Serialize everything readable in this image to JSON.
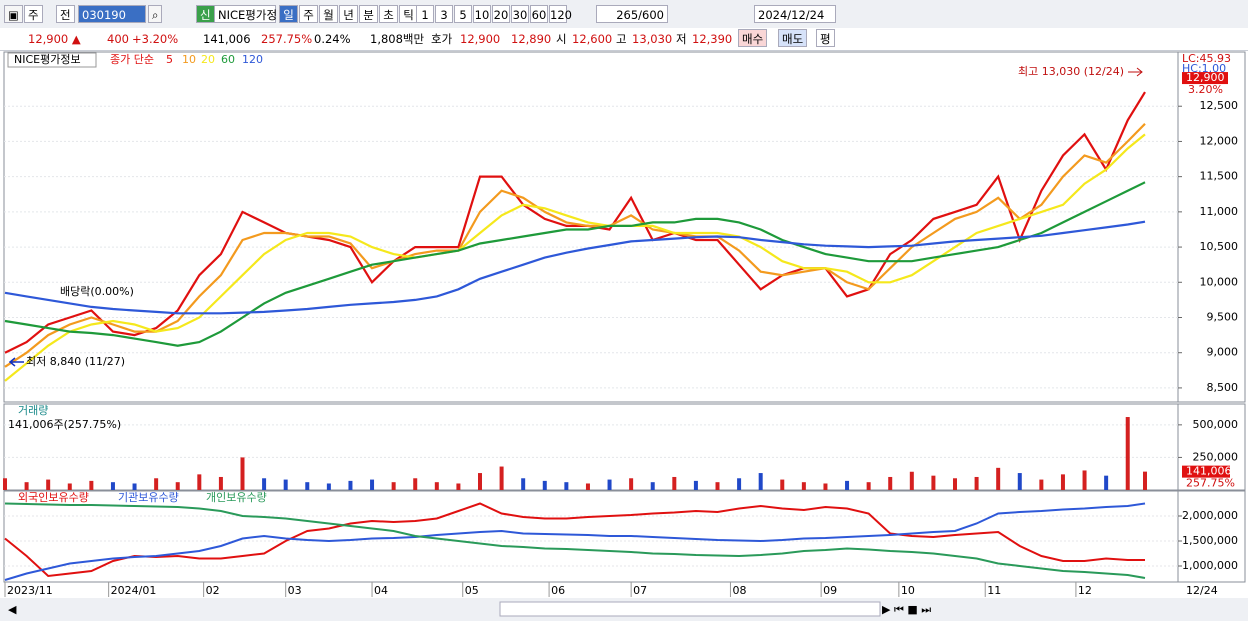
{
  "toolbar": {
    "period": "주",
    "prev": "전",
    "code": "030190",
    "name": "NICE평가정",
    "tabs": [
      "일",
      "주",
      "월",
      "년",
      "분",
      "초",
      "틱"
    ],
    "intervals": [
      "1",
      "3",
      "5",
      "10",
      "20",
      "30",
      "60",
      "120"
    ],
    "count": "265/600",
    "date": "2024/12/24"
  },
  "quote": {
    "price": "12,900 ▲",
    "change": "400",
    "change_pct": "+3.20%",
    "volume": "141,006",
    "volume_ratio": "257.75%",
    "turnover": "0.24%",
    "amount": "1,808백만",
    "bid_label": "호가",
    "ask": "12,900",
    "bid": "12,890",
    "open_label": "시",
    "open": "12,600",
    "high_label": "고",
    "high": "13,030",
    "low_label": "저",
    "low": "12,390",
    "buy": "매수",
    "sell": "매도",
    "avg": "평"
  },
  "chart_data": [
    {
      "type": "line",
      "title": "NICE평가정보",
      "legend_prefix": "종가 단순",
      "grid": true,
      "x": [
        0,
        5,
        10,
        15,
        20,
        25,
        30,
        35,
        40,
        45,
        50,
        55,
        60,
        65,
        70,
        75,
        80,
        85,
        90,
        95,
        100,
        105,
        110,
        115,
        120,
        125,
        130,
        135,
        140,
        145,
        150,
        155,
        160,
        165,
        170,
        175,
        180,
        185,
        190,
        195,
        200,
        205,
        210,
        215,
        220,
        225,
        230,
        235,
        240,
        245,
        250,
        255,
        260,
        264
      ],
      "xlim": [
        0,
        264
      ],
      "ylim": [
        8300,
        13270
      ],
      "yticks": [
        {
          "value": 8500,
          "label": "8,500"
        },
        {
          "value": 9000,
          "label": "9,000"
        },
        {
          "value": 9500,
          "label": "9,500"
        },
        {
          "value": 10000,
          "label": "10,000"
        },
        {
          "value": 10500,
          "label": "10,500"
        },
        {
          "value": 11000,
          "label": "11,000"
        },
        {
          "value": 11500,
          "label": "11,500"
        },
        {
          "value": 12000,
          "label": "12,000"
        },
        {
          "value": 12500,
          "label": "12,500"
        }
      ],
      "series": [
        {
          "name": "5",
          "color": "#e01010",
          "values": [
            9000,
            9150,
            9400,
            9500,
            9600,
            9300,
            9250,
            9350,
            9600,
            10100,
            10400,
            11000,
            10850,
            10700,
            10650,
            10600,
            10500,
            10000,
            10300,
            10500,
            10500,
            10500,
            11500,
            11500,
            11100,
            10900,
            10800,
            10800,
            10750,
            11200,
            10600,
            10700,
            10600,
            10600,
            10250,
            9900,
            10100,
            10200,
            10200,
            9800,
            9900,
            10400,
            10600,
            10900,
            11000,
            11100,
            11500,
            10600,
            11300,
            11800,
            12100,
            11600,
            12300,
            12700
          ]
        },
        {
          "name": "10",
          "color": "#f39a1e",
          "values": [
            8800,
            9000,
            9250,
            9400,
            9500,
            9400,
            9300,
            9300,
            9450,
            9800,
            10100,
            10600,
            10700,
            10700,
            10650,
            10650,
            10550,
            10200,
            10300,
            10400,
            10450,
            10450,
            11000,
            11300,
            11200,
            11000,
            10850,
            10800,
            10800,
            10950,
            10750,
            10700,
            10650,
            10650,
            10450,
            10150,
            10100,
            10150,
            10200,
            10000,
            9900,
            10200,
            10500,
            10700,
            10900,
            11000,
            11200,
            10900,
            11100,
            11500,
            11800,
            11700,
            12000,
            12250
          ]
        },
        {
          "name": "20",
          "color": "#f5e81c",
          "values": [
            8600,
            8850,
            9100,
            9300,
            9400,
            9450,
            9400,
            9300,
            9350,
            9500,
            9800,
            10100,
            10400,
            10600,
            10700,
            10700,
            10650,
            10500,
            10400,
            10350,
            10400,
            10450,
            10700,
            10950,
            11100,
            11050,
            10950,
            10850,
            10800,
            10800,
            10800,
            10700,
            10700,
            10700,
            10650,
            10500,
            10300,
            10200,
            10200,
            10150,
            10000,
            10000,
            10100,
            10300,
            10500,
            10700,
            10800,
            10900,
            11000,
            11100,
            11400,
            11600,
            11900,
            12100
          ]
        },
        {
          "name": "60",
          "color": "#1e9a3a",
          "values": [
            9450,
            9400,
            9350,
            9300,
            9280,
            9250,
            9200,
            9150,
            9100,
            9150,
            9300,
            9500,
            9700,
            9850,
            9950,
            10050,
            10150,
            10250,
            10300,
            10350,
            10400,
            10450,
            10550,
            10600,
            10650,
            10700,
            10750,
            10750,
            10800,
            10800,
            10850,
            10850,
            10900,
            10900,
            10850,
            10750,
            10600,
            10500,
            10400,
            10350,
            10300,
            10300,
            10300,
            10350,
            10400,
            10450,
            10500,
            10600,
            10700,
            10850,
            11000,
            11150,
            11300,
            11420
          ]
        },
        {
          "name": "120",
          "color": "#2e58d8",
          "values": [
            9850,
            9800,
            9750,
            9700,
            9650,
            9620,
            9600,
            9580,
            9560,
            9560,
            9560,
            9570,
            9580,
            9600,
            9620,
            9650,
            9680,
            9700,
            9720,
            9750,
            9800,
            9900,
            10050,
            10150,
            10250,
            10350,
            10420,
            10480,
            10530,
            10580,
            10600,
            10620,
            10640,
            10650,
            10640,
            10600,
            10570,
            10540,
            10520,
            10510,
            10500,
            10510,
            10520,
            10550,
            10580,
            10600,
            10620,
            10640,
            10660,
            10700,
            10740,
            10780,
            10820,
            10860
          ]
        }
      ],
      "annotations": {
        "high": "최고 13,030 (12/24)",
        "low": "최저 8,840 (11/27)",
        "dividend": "배당락(0.00%)",
        "lc": "LC:45.93",
        "hc": "HC:1.00"
      },
      "price_tag": {
        "value": 12900,
        "label": "12,900"
      },
      "change_tag": "3.20%"
    },
    {
      "type": "bar",
      "title": "거래량",
      "subtitle": "141,006주(257.75%)",
      "ylim": [
        0,
        660000
      ],
      "yticks": [
        {
          "value": 250000,
          "label": "250,000"
        },
        {
          "value": 500000,
          "label": "500,000"
        }
      ],
      "up_color": "#d42020",
      "down_color": "#2048c8",
      "series": [
        {
          "name": "거래량",
          "values": [
            90000,
            60000,
            80000,
            50000,
            70000,
            60000,
            50000,
            90000,
            60000,
            120000,
            100000,
            250000,
            90000,
            80000,
            60000,
            50000,
            70000,
            80000,
            60000,
            90000,
            60000,
            50000,
            130000,
            180000,
            90000,
            70000,
            60000,
            50000,
            80000,
            90000,
            60000,
            100000,
            70000,
            60000,
            90000,
            130000,
            80000,
            60000,
            50000,
            70000,
            60000,
            100000,
            140000,
            110000,
            90000,
            100000,
            170000,
            130000,
            80000,
            120000,
            150000,
            110000,
            560000,
            141006
          ]
        }
      ],
      "volume_tag": {
        "value": 141006,
        "label": "141,006"
      },
      "ratio_tag": "257.75%"
    },
    {
      "type": "line",
      "ylim": [
        680000,
        2500000
      ],
      "yticks": [
        {
          "value": 1000000,
          "label": "1,000,000"
        },
        {
          "value": 1500000,
          "label": "1,500,000"
        },
        {
          "value": 2000000,
          "label": "2,000,000"
        }
      ],
      "xticks": [
        {
          "value": 0,
          "label": "2023/11"
        },
        {
          "value": 24,
          "label": "2024/01"
        },
        {
          "value": 46,
          "label": "02"
        },
        {
          "value": 65,
          "label": "03"
        },
        {
          "value": 85,
          "label": "04"
        },
        {
          "value": 106,
          "label": "05"
        },
        {
          "value": 126,
          "label": "06"
        },
        {
          "value": 145,
          "label": "07"
        },
        {
          "value": 168,
          "label": "08"
        },
        {
          "value": 189,
          "label": "09"
        },
        {
          "value": 207,
          "label": "10"
        },
        {
          "value": 227,
          "label": "11"
        },
        {
          "value": 248,
          "label": "12"
        }
      ],
      "cursor_date": "12/24",
      "series": [
        {
          "name": "외국인보유수량",
          "color": "#e01010",
          "values": [
            1550000,
            1200000,
            800000,
            850000,
            900000,
            1100000,
            1200000,
            1180000,
            1200000,
            1150000,
            1150000,
            1200000,
            1250000,
            1500000,
            1700000,
            1750000,
            1850000,
            1900000,
            1880000,
            1900000,
            1950000,
            2100000,
            2250000,
            2050000,
            1980000,
            1950000,
            1950000,
            1980000,
            2000000,
            2020000,
            2050000,
            2070000,
            2100000,
            2080000,
            2150000,
            2200000,
            2150000,
            2120000,
            2180000,
            2150000,
            2050000,
            1650000,
            1600000,
            1580000,
            1620000,
            1650000,
            1680000,
            1400000,
            1200000,
            1100000,
            1100000,
            1150000,
            1120000,
            1120000
          ]
        },
        {
          "name": "기관보유수량",
          "color": "#2e58d8",
          "values": [
            720000,
            850000,
            950000,
            1050000,
            1100000,
            1150000,
            1180000,
            1200000,
            1250000,
            1300000,
            1400000,
            1550000,
            1600000,
            1550000,
            1520000,
            1500000,
            1520000,
            1550000,
            1560000,
            1580000,
            1620000,
            1650000,
            1680000,
            1700000,
            1650000,
            1640000,
            1630000,
            1620000,
            1600000,
            1600000,
            1580000,
            1560000,
            1540000,
            1520000,
            1510000,
            1500000,
            1520000,
            1550000,
            1560000,
            1580000,
            1600000,
            1620000,
            1650000,
            1680000,
            1700000,
            1850000,
            2050000,
            2080000,
            2100000,
            2130000,
            2150000,
            2180000,
            2200000,
            2250000
          ]
        },
        {
          "name": "개인보유수량",
          "color": "#2a9a5a",
          "values": [
            2250000,
            2240000,
            2230000,
            2220000,
            2220000,
            2210000,
            2200000,
            2190000,
            2180000,
            2150000,
            2100000,
            2000000,
            1980000,
            1950000,
            1900000,
            1850000,
            1800000,
            1750000,
            1700000,
            1600000,
            1550000,
            1500000,
            1450000,
            1400000,
            1380000,
            1350000,
            1340000,
            1320000,
            1300000,
            1280000,
            1250000,
            1240000,
            1220000,
            1210000,
            1200000,
            1220000,
            1250000,
            1300000,
            1320000,
            1350000,
            1330000,
            1300000,
            1280000,
            1250000,
            1200000,
            1150000,
            1050000,
            1000000,
            950000,
            900000,
            880000,
            850000,
            820000,
            760000
          ]
        }
      ]
    }
  ]
}
